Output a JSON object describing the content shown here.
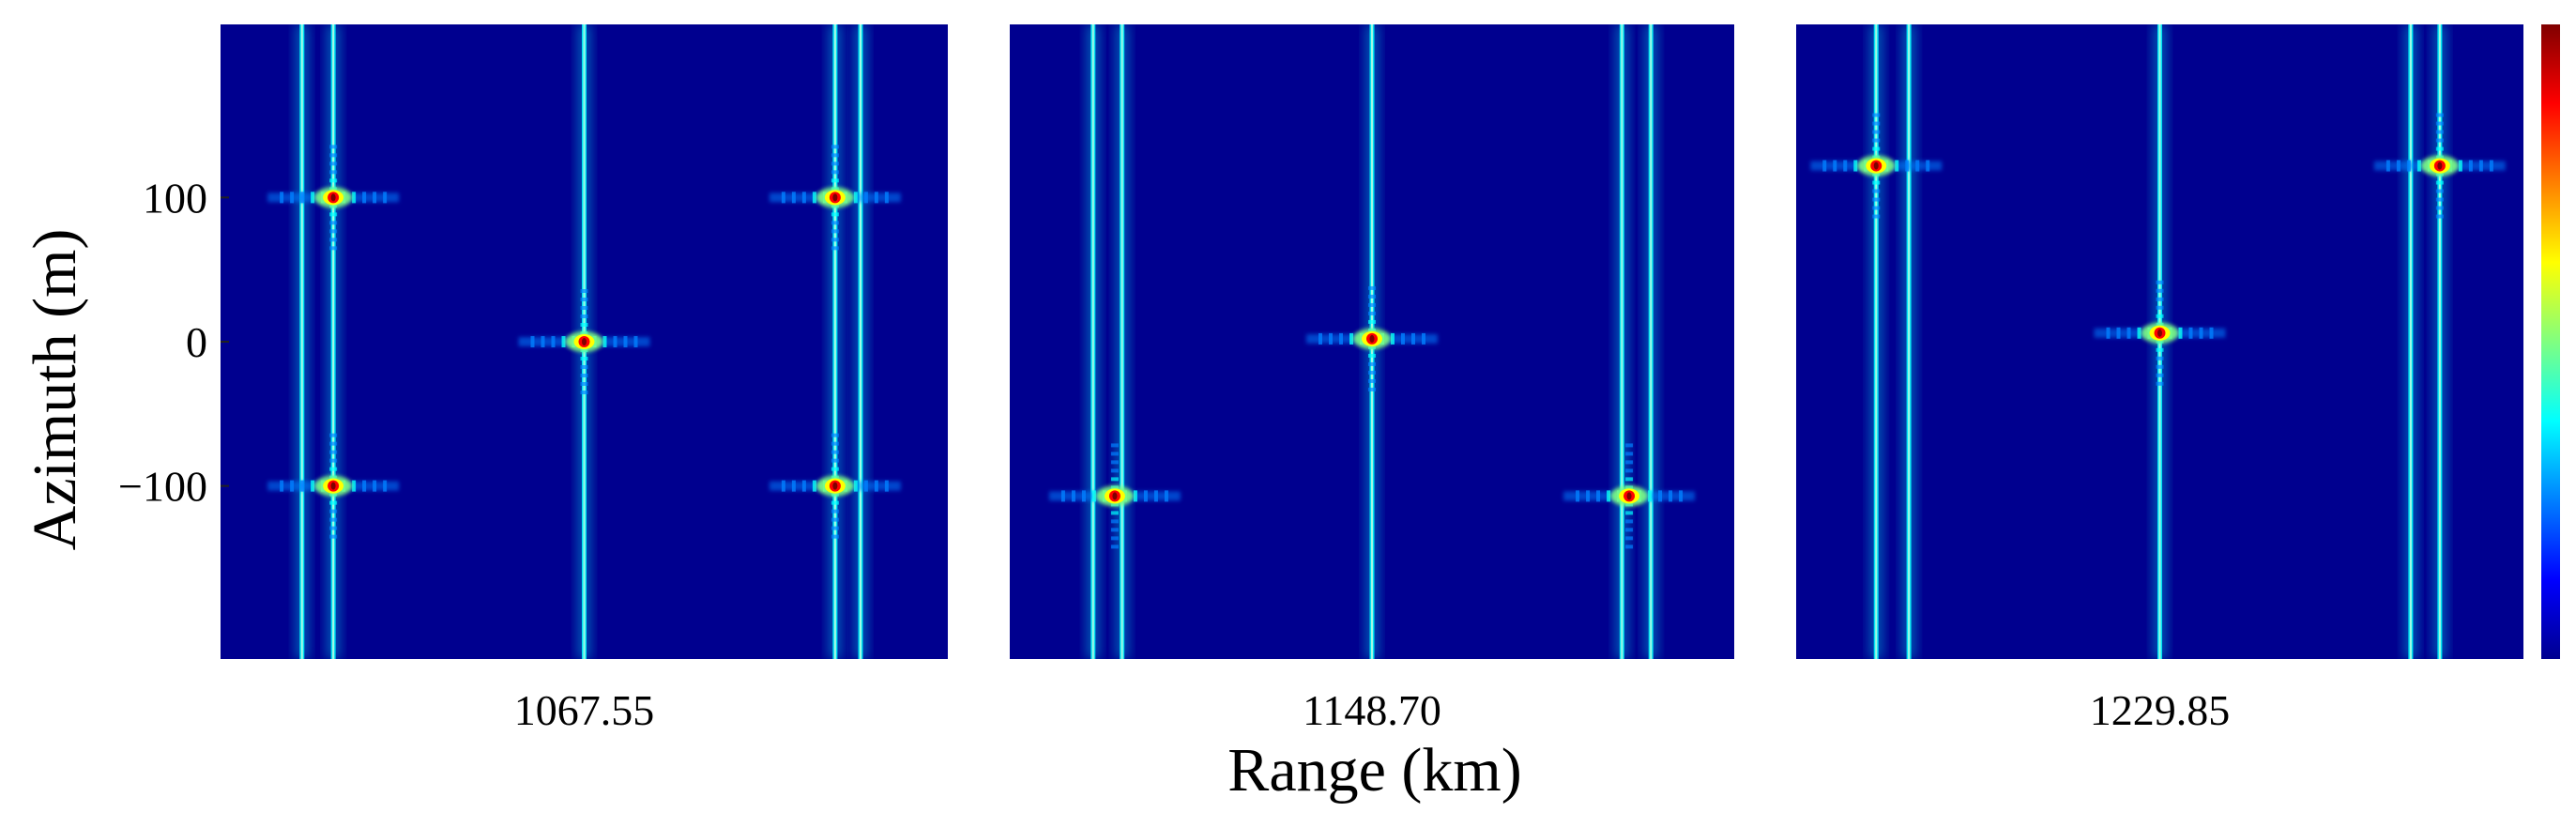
{
  "chart_data": {
    "type": "heatmap",
    "ylabel": "Azimuth (m)",
    "xlabel": "Range (km)",
    "yticks": [
      100,
      0,
      -100
    ],
    "ytick_labels": [
      "100",
      "0",
      "−100"
    ],
    "ylim": [
      -220,
      220
    ],
    "colormap": [
      "#00008f",
      "#0000ff",
      "#0080ff",
      "#00ffff",
      "#80ff80",
      "#ffff00",
      "#ff8000",
      "#ff0000",
      "#800000"
    ],
    "panels": [
      {
        "label": "1067.55",
        "points": [
          {
            "x": 0.155,
            "y": 100
          },
          {
            "x": 0.5,
            "y": 0
          },
          {
            "x": 0.845,
            "y": 100
          },
          {
            "x": 0.155,
            "y": -100
          },
          {
            "x": 0.845,
            "y": -100
          }
        ],
        "stripes": [
          {
            "x": 0.112
          },
          {
            "x": 0.155
          },
          {
            "x": 0.5
          },
          {
            "x": 0.845
          },
          {
            "x": 0.88
          }
        ]
      },
      {
        "label": "1148.70",
        "points": [
          {
            "x": 0.145,
            "y": -107
          },
          {
            "x": 0.5,
            "y": 2
          },
          {
            "x": 0.855,
            "y": -107
          }
        ],
        "stripes": [
          {
            "x": 0.115
          },
          {
            "x": 0.155
          },
          {
            "x": 0.5
          },
          {
            "x": 0.845
          },
          {
            "x": 0.885
          }
        ]
      },
      {
        "label": "1229.85",
        "points": [
          {
            "x": 0.11,
            "y": 122
          },
          {
            "x": 0.5,
            "y": 6
          },
          {
            "x": 0.885,
            "y": 122
          }
        ],
        "stripes": [
          {
            "x": 0.11
          },
          {
            "x": 0.155
          },
          {
            "x": 0.5
          },
          {
            "x": 0.845
          },
          {
            "x": 0.885
          }
        ]
      }
    ]
  }
}
